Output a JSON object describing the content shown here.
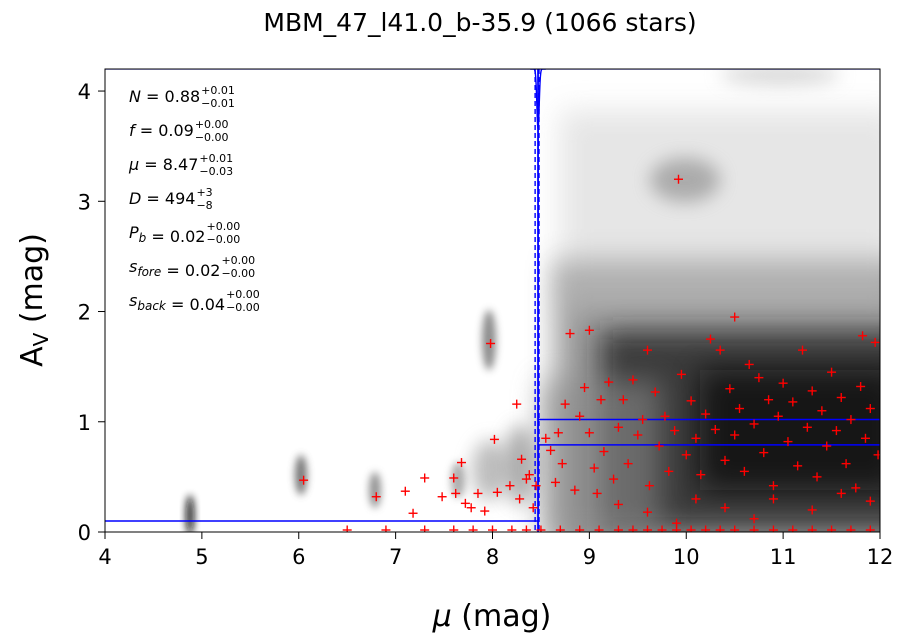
{
  "chart_data": {
    "type": "scatter",
    "title": "MBM_47_l41.0_b-35.9 (1066 stars)",
    "xlabel_symbol": "μ",
    "xlabel_unit": " (mag)",
    "ylabel_main": "A",
    "ylabel_sub": "V",
    "ylabel_unit": " (mag)",
    "xlim": [
      4,
      12
    ],
    "ylim": [
      0,
      4.2
    ],
    "xticks": [
      "4",
      "5",
      "6",
      "7",
      "8",
      "9",
      "10",
      "11",
      "12"
    ],
    "yticks": [
      "0",
      "1",
      "2",
      "3",
      "4"
    ],
    "grid": false,
    "annotations": [
      {
        "var": "N",
        "sub": "",
        "val": "0.88",
        "up": "+0.01",
        "lo": "−0.01"
      },
      {
        "var": "f",
        "sub": "",
        "val": "0.09",
        "up": "+0.00",
        "lo": "−0.00"
      },
      {
        "var": "μ",
        "sub": "",
        "val": "8.47",
        "up": "+0.01",
        "lo": "−0.03"
      },
      {
        "var": "D",
        "sub": "",
        "val": "494",
        "up": "+3",
        "lo": "−8"
      },
      {
        "var": "P",
        "sub": "b",
        "val": "0.02",
        "up": "+0.00",
        "lo": "−0.00"
      },
      {
        "var": "s",
        "sub": "fore",
        "val": "0.02",
        "up": "+0.00",
        "lo": "−0.00"
      },
      {
        "var": "s",
        "sub": "back",
        "val": "0.04",
        "up": "+0.00",
        "lo": "−0.00"
      }
    ],
    "model": {
      "distance_modulus": 8.47,
      "distance_modulus_bounds": [
        8.44,
        8.48
      ],
      "av_foreground": 0.1,
      "av_background_bounds": [
        0.79,
        1.02
      ]
    },
    "points": [
      [
        6.05,
        0.47
      ],
      [
        6.8,
        0.32
      ],
      [
        7.1,
        0.37
      ],
      [
        7.18,
        0.17
      ],
      [
        7.3,
        0.49
      ],
      [
        7.48,
        0.32
      ],
      [
        7.6,
        0.49
      ],
      [
        7.62,
        0.35
      ],
      [
        7.68,
        0.63
      ],
      [
        7.72,
        0.26
      ],
      [
        7.78,
        0.22
      ],
      [
        7.85,
        0.35
      ],
      [
        7.92,
        0.19
      ],
      [
        7.98,
        1.71
      ],
      [
        8.02,
        0.84
      ],
      [
        8.05,
        0.36
      ],
      [
        8.18,
        0.42
      ],
      [
        8.25,
        1.16
      ],
      [
        8.28,
        0.3
      ],
      [
        8.3,
        0.66
      ],
      [
        8.35,
        0.48
      ],
      [
        8.38,
        0.52
      ],
      [
        8.42,
        0.22
      ],
      [
        8.45,
        0.42
      ],
      [
        8.55,
        0.85
      ],
      [
        8.6,
        0.74
      ],
      [
        8.65,
        0.45
      ],
      [
        8.68,
        0.9
      ],
      [
        8.72,
        0.62
      ],
      [
        8.75,
        1.16
      ],
      [
        8.8,
        1.8
      ],
      [
        8.85,
        0.38
      ],
      [
        8.9,
        1.05
      ],
      [
        8.95,
        1.31
      ],
      [
        9.0,
        0.9
      ],
      [
        9.0,
        1.83
      ],
      [
        9.05,
        0.58
      ],
      [
        9.08,
        0.35
      ],
      [
        9.12,
        1.2
      ],
      [
        9.15,
        0.73
      ],
      [
        9.2,
        1.36
      ],
      [
        9.25,
        0.48
      ],
      [
        9.3,
        0.95
      ],
      [
        9.35,
        1.2
      ],
      [
        9.4,
        0.62
      ],
      [
        9.45,
        1.38
      ],
      [
        9.5,
        0.88
      ],
      [
        9.55,
        1.02
      ],
      [
        9.6,
        1.65
      ],
      [
        9.62,
        0.42
      ],
      [
        9.68,
        1.27
      ],
      [
        9.72,
        0.78
      ],
      [
        9.78,
        1.05
      ],
      [
        9.82,
        0.55
      ],
      [
        9.88,
        0.92
      ],
      [
        9.92,
        3.2
      ],
      [
        9.95,
        1.43
      ],
      [
        10.0,
        0.7
      ],
      [
        10.05,
        1.19
      ],
      [
        10.1,
        0.85
      ],
      [
        10.15,
        0.52
      ],
      [
        10.2,
        1.07
      ],
      [
        10.25,
        1.75
      ],
      [
        10.3,
        0.93
      ],
      [
        10.35,
        1.65
      ],
      [
        10.4,
        0.65
      ],
      [
        10.45,
        1.3
      ],
      [
        10.5,
        1.95
      ],
      [
        10.5,
        0.88
      ],
      [
        10.55,
        1.12
      ],
      [
        10.6,
        0.55
      ],
      [
        10.65,
        1.52
      ],
      [
        10.7,
        0.98
      ],
      [
        10.75,
        1.4
      ],
      [
        10.8,
        0.72
      ],
      [
        10.85,
        1.2
      ],
      [
        10.9,
        0.42
      ],
      [
        10.95,
        1.05
      ],
      [
        11.0,
        1.35
      ],
      [
        11.05,
        0.82
      ],
      [
        11.1,
        1.18
      ],
      [
        11.15,
        0.6
      ],
      [
        11.2,
        1.65
      ],
      [
        11.25,
        0.95
      ],
      [
        11.3,
        1.28
      ],
      [
        11.35,
        0.5
      ],
      [
        11.4,
        1.1
      ],
      [
        11.45,
        0.78
      ],
      [
        11.5,
        1.45
      ],
      [
        11.55,
        0.92
      ],
      [
        11.6,
        1.22
      ],
      [
        11.65,
        0.62
      ],
      [
        11.7,
        1.02
      ],
      [
        11.75,
        0.4
      ],
      [
        11.8,
        1.32
      ],
      [
        11.82,
        1.78
      ],
      [
        11.85,
        0.85
      ],
      [
        11.9,
        1.12
      ],
      [
        11.95,
        1.72
      ],
      [
        11.98,
        0.7
      ],
      [
        9.3,
        0.25
      ],
      [
        9.6,
        0.18
      ],
      [
        10.1,
        0.3
      ],
      [
        10.4,
        0.22
      ],
      [
        10.9,
        0.3
      ],
      [
        11.3,
        0.2
      ],
      [
        11.6,
        0.35
      ],
      [
        10.7,
        0.12
      ],
      [
        9.9,
        0.08
      ],
      [
        11.9,
        0.28
      ]
    ],
    "censored_points_av0": [
      6.5,
      6.9,
      7.3,
      7.6,
      7.8,
      8.0,
      8.2,
      8.35,
      8.5,
      8.7,
      8.9,
      9.1,
      9.3,
      9.45,
      9.6,
      9.75,
      9.9,
      10.05,
      10.2,
      10.35,
      10.5,
      10.7,
      10.9,
      11.1,
      11.3,
      11.5,
      11.7,
      11.9
    ]
  }
}
